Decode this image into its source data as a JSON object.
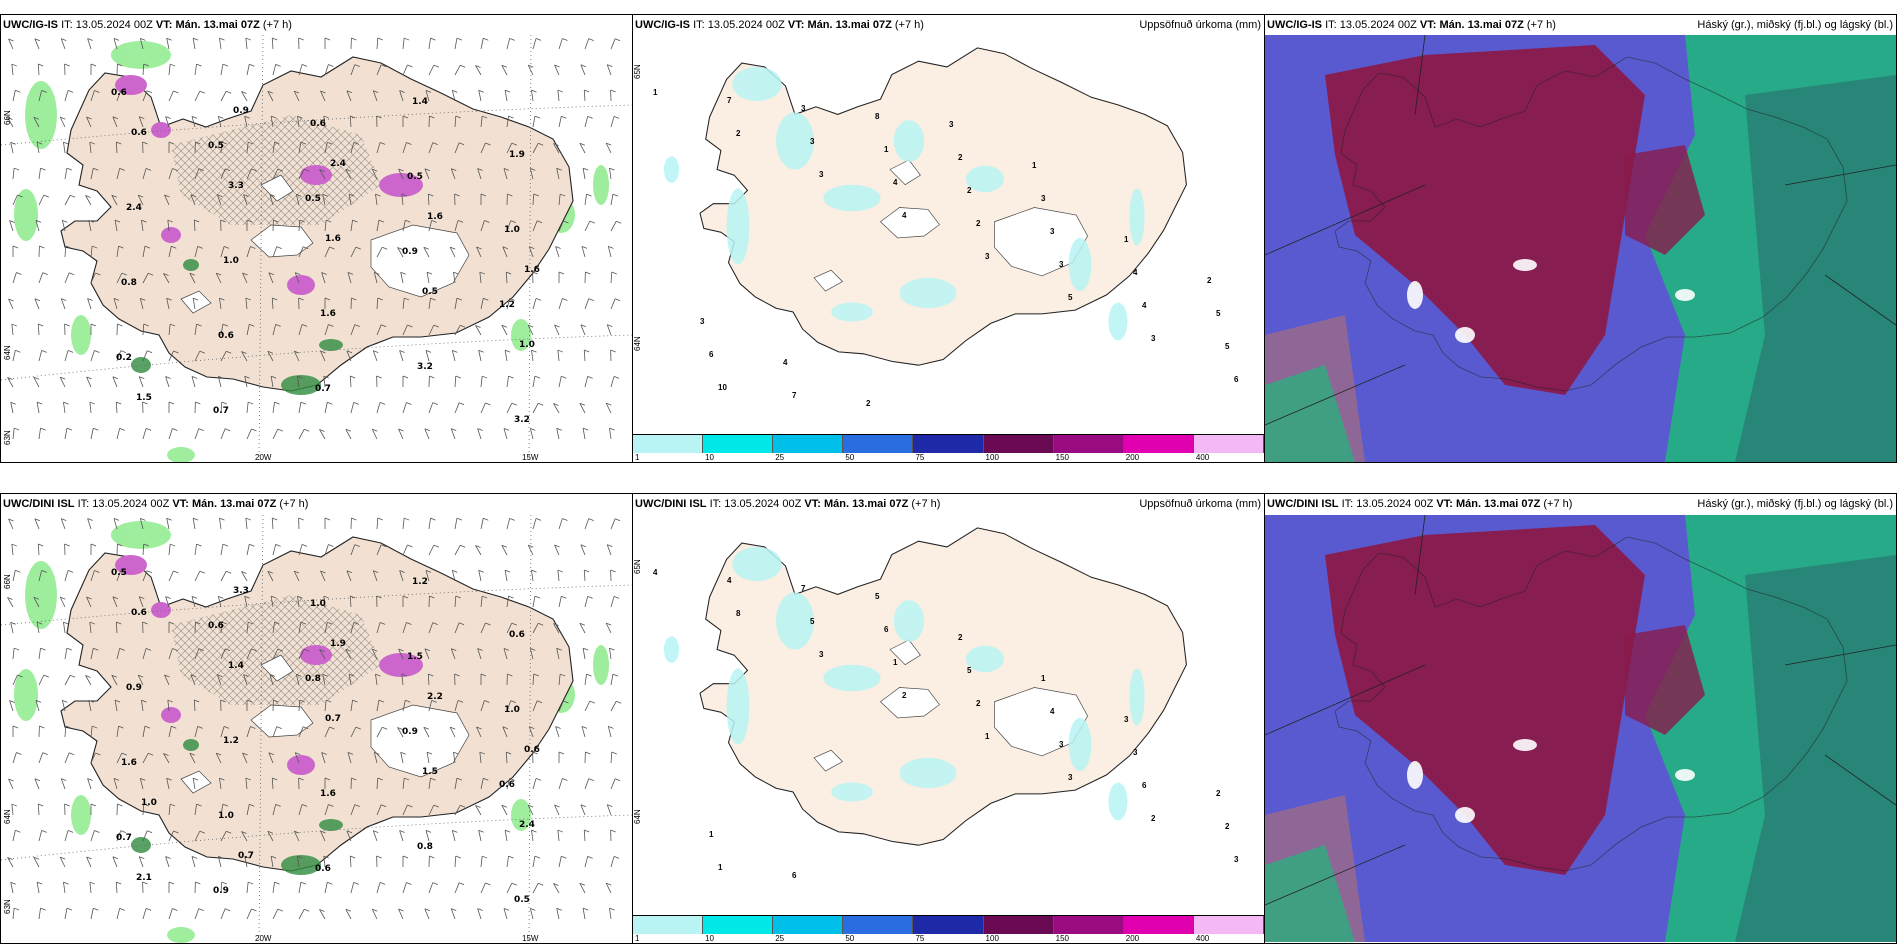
{
  "panels": [
    {
      "id": "top-wind",
      "model": "UWC/IG-IS",
      "it_label": "IT:",
      "it_value": "13.05.2024 00Z",
      "vt_label": "VT:",
      "vt_value": "Mán. 13.mai 07Z",
      "lead": "(+7 h)",
      "right_title": "",
      "lat_labels": [
        "66N",
        "64N",
        "63N"
      ],
      "lon_labels": [
        "20W",
        "15W"
      ],
      "values": [
        "0.6",
        "0.5",
        "0.5",
        "0.9",
        "1.2",
        "0.2",
        "0.7",
        "0.6",
        "0.5",
        "1.0",
        "0.8",
        "0.6",
        "0.7",
        "1.4",
        "1.9",
        "2.4",
        "1.0",
        "1.6",
        "3.2",
        "3.2",
        "0.6",
        "3.3",
        "1.6",
        "0.5",
        "1.0",
        "1.5",
        "0.9",
        "2.4",
        "1.6",
        "1.6"
      ]
    },
    {
      "id": "top-precip",
      "model": "UWC/IG-IS",
      "it_label": "IT:",
      "it_value": "13.05.2024 00Z",
      "vt_label": "VT:",
      "vt_value": "Mán. 13.mai 07Z",
      "lead": "(+7 h)",
      "right_title": "Uppsöfnuð úrkoma (mm)",
      "lat_labels": [
        "65N",
        "64N"
      ],
      "lon_labels": [],
      "values": [
        "1",
        "2",
        "3",
        "4",
        "3",
        "5",
        "3",
        "6",
        "7",
        "3",
        "4",
        "2",
        "3",
        "4",
        "5",
        "10",
        "3",
        "1",
        "2",
        "3",
        "4",
        "5",
        "6",
        "7",
        "8",
        "2",
        "3",
        "1",
        "2",
        "3",
        "4",
        "2",
        "3",
        "1"
      ]
    },
    {
      "id": "top-cloud",
      "model": "UWC/IG-IS",
      "it_label": "IT:",
      "it_value": "13.05.2024 00Z",
      "vt_label": "VT:",
      "vt_value": "Mán. 13.mai 07Z",
      "lead": "(+7 h)",
      "right_title": "Háský (gr.), miðský (fj.bl.) og lágský (bl.)",
      "lat_labels": [],
      "lon_labels": [],
      "values": []
    },
    {
      "id": "bottom-wind",
      "model": "UWC/DINI ISL",
      "it_label": "IT:",
      "it_value": "13.05.2024 00Z",
      "vt_label": "VT:",
      "vt_value": "Mán. 13.mai 07Z",
      "lead": "(+7 h)",
      "right_title": "",
      "lat_labels": [
        "66N",
        "64N",
        "63N"
      ],
      "lon_labels": [
        "20W",
        "15W"
      ],
      "values": [
        "0.5",
        "0.6",
        "0.8",
        "0.9",
        "0.6",
        "0.7",
        "0.9",
        "1.0",
        "1.5",
        "1.0",
        "1.6",
        "1.0",
        "0.6",
        "1.2",
        "0.6",
        "0.9",
        "1.2",
        "1.6",
        "0.8",
        "0.5",
        "0.6",
        "1.4",
        "0.7",
        "1.5",
        "2.4",
        "2.1",
        "3.3",
        "1.9",
        "2.2",
        "0.6",
        "1.0",
        "0.7"
      ]
    },
    {
      "id": "bottom-precip",
      "model": "UWC/DINI ISL",
      "it_label": "IT:",
      "it_value": "13.05.2024 00Z",
      "vt_label": "VT:",
      "vt_value": "Mán. 13.mai 07Z",
      "lead": "(+7 h)",
      "right_title": "Uppsöfnuð úrkoma (mm)",
      "lat_labels": [
        "65N",
        "64N"
      ],
      "lon_labels": [],
      "values": [
        "4",
        "8",
        "3",
        "2",
        "1",
        "3",
        "2",
        "3",
        "4",
        "5",
        "1",
        "2",
        "3",
        "6",
        "2",
        "1",
        "7",
        "6",
        "5",
        "4",
        "3",
        "2",
        "1",
        "6",
        "5",
        "2",
        "1",
        "3"
      ]
    },
    {
      "id": "bottom-cloud",
      "model": "UWC/DINI ISL",
      "it_label": "IT:",
      "it_value": "13.05.2024 00Z",
      "vt_label": "VT:",
      "vt_value": "Mán. 13.mai 07Z",
      "lead": "(+7 h)",
      "right_title": "Háský (gr.), miðský (fj.bl.) og lágský (bl.)",
      "lat_labels": [],
      "lon_labels": [],
      "values": []
    }
  ],
  "precip_scale": {
    "labels": [
      "1",
      "10",
      "25",
      "50",
      "75",
      "100",
      "150",
      "200",
      "400"
    ],
    "colors": [
      "#b8f4f4",
      "#00e8e8",
      "#00bfe8",
      "#2a6de0",
      "#1e2aa8",
      "#6a0a52",
      "#9a0a80",
      "#e000b0",
      "#f4b8f4"
    ]
  },
  "colors": {
    "land": "#f2e1d2",
    "precip_land": "#fbeee3",
    "glacier": "#ffffff",
    "snow_purple": "#cc66cc",
    "green_precip": "#7de87d",
    "cloud_high": "#8a1a4a",
    "cloud_mid": "#5a5ad0",
    "cloud_low": "#1fb87a"
  }
}
